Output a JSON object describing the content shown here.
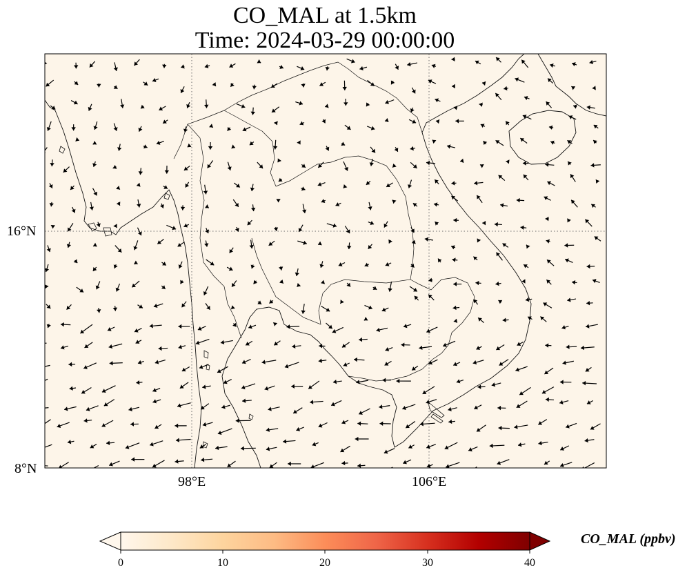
{
  "figure": {
    "title_line1": "CO_MAL at 1.5km",
    "title_line2": "Time: 2024-03-29 00:00:00"
  },
  "map": {
    "projection": "PlateCarree",
    "lon_range": [
      93,
      112
    ],
    "lat_range": [
      8,
      22
    ],
    "background_color": "#fdf5e9",
    "x_tick_labels": [
      "98°E",
      "106°E"
    ],
    "y_tick_labels": [
      "16°N",
      "8°N"
    ],
    "gridlines": "dotted",
    "wind_vectors": "quiver, black arrows"
  },
  "colorbar": {
    "label": "CO_MAL (ppbv)",
    "ticks": [
      "0",
      "10",
      "20",
      "30",
      "40"
    ],
    "range": [
      0,
      40
    ],
    "extend": "both",
    "colormap": "OrRd",
    "colors": [
      "#fff7ec",
      "#fee8c8",
      "#fdd49e",
      "#fdbb84",
      "#fc8d59",
      "#ef6548",
      "#d7301f",
      "#b30000",
      "#7f0000"
    ]
  }
}
